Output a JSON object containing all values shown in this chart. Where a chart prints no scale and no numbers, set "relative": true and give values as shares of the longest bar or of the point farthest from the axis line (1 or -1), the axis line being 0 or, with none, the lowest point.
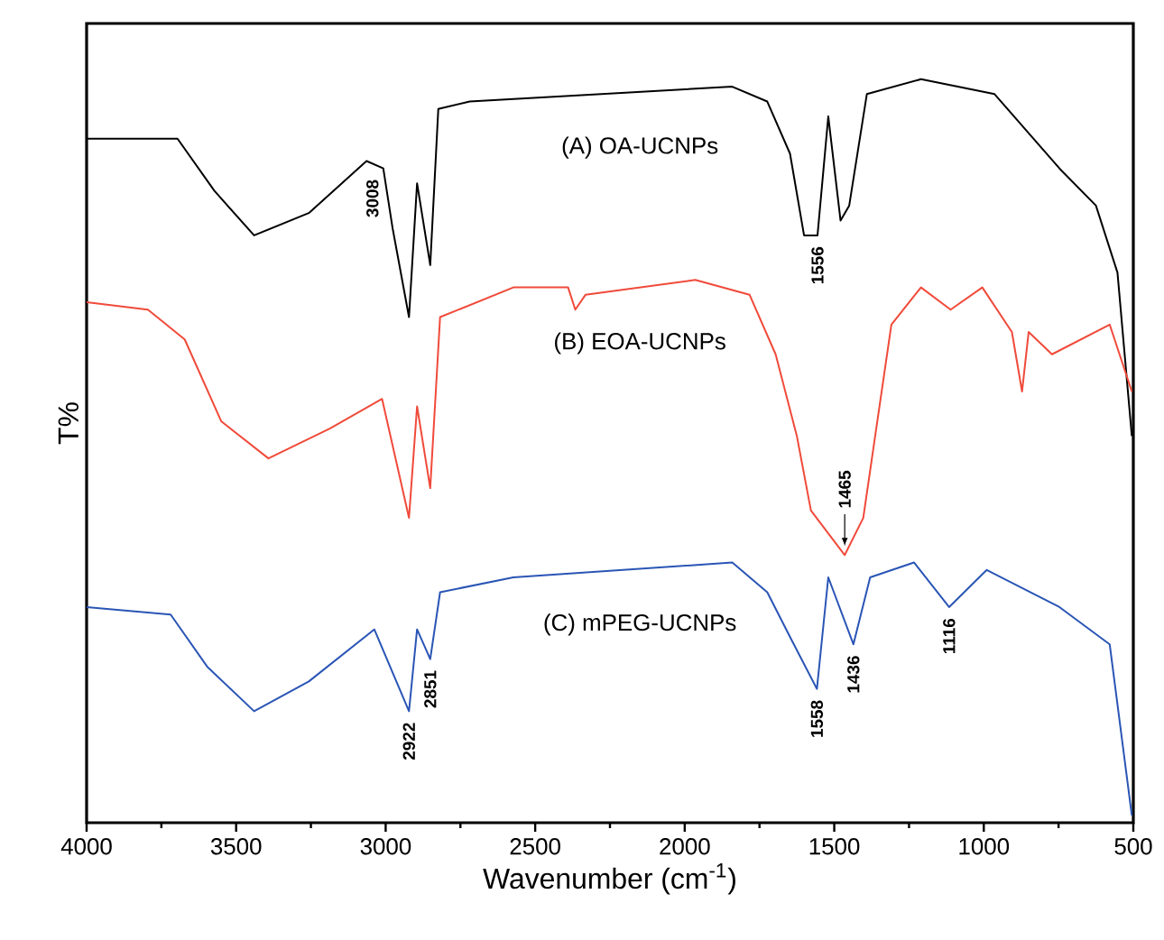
{
  "chart_data": {
    "type": "line",
    "relative": true,
    "xlabel": "Wavenumber (cm$^{-1}$)",
    "ylabel": "T%",
    "xlim": [
      4000,
      500
    ],
    "xticks": [
      4000,
      3500,
      3000,
      2500,
      2000,
      1500,
      1000,
      500
    ],
    "tick_labels": "x",
    "line_style": "solid",
    "marker": "none",
    "series": [
      {
        "name": "(A) OA-UCNPs",
        "color": "#000000",
        "x": [
          4000,
          3696,
          3573,
          3440,
          3257,
          3064,
          3008,
          2977,
          2922,
          2895,
          2851,
          2824,
          2719,
          1841,
          1724,
          1648,
          1601,
          1556,
          1520,
          1479,
          1450,
          1391,
          1210,
          964,
          747,
          625,
          553,
          505
        ],
        "values": [
          0.92,
          0.92,
          0.85,
          0.79,
          0.82,
          0.89,
          0.88,
          0.8,
          0.68,
          0.86,
          0.75,
          0.96,
          0.97,
          0.99,
          0.97,
          0.9,
          0.79,
          0.79,
          0.95,
          0.81,
          0.83,
          0.98,
          1.0,
          0.98,
          0.88,
          0.83,
          0.74,
          0.52
        ]
      },
      {
        "name": "(B) EOA-UCNPs",
        "color": "#f04a3a",
        "x": [
          4000,
          3795,
          3672,
          3550,
          3392,
          3187,
          3012,
          2922,
          2895,
          2851,
          2818,
          2573,
          2390,
          2366,
          2332,
          1965,
          1783,
          1696,
          1625,
          1578,
          1465,
          1403,
          1309,
          1210,
          1111,
          1005,
          906,
          872,
          850,
          772,
          579,
          505
        ],
        "values": [
          0.7,
          0.69,
          0.65,
          0.54,
          0.49,
          0.53,
          0.57,
          0.41,
          0.56,
          0.45,
          0.68,
          0.72,
          0.72,
          0.69,
          0.71,
          0.73,
          0.71,
          0.63,
          0.52,
          0.42,
          0.36,
          0.41,
          0.67,
          0.72,
          0.69,
          0.72,
          0.66,
          0.58,
          0.66,
          0.63,
          0.67,
          0.58
        ]
      },
      {
        "name": "(C) mPEG-UCNPs",
        "color": "#2a55b5",
        "x": [
          4000,
          3719,
          3597,
          3440,
          3257,
          3038,
          2922,
          2895,
          2851,
          2818,
          2573,
          1841,
          1724,
          1648,
          1558,
          1520,
          1436,
          1380,
          1233,
          1116,
          990,
          747,
          579,
          505
        ],
        "values": [
          0.29,
          0.28,
          0.21,
          0.15,
          0.19,
          0.26,
          0.15,
          0.26,
          0.22,
          0.31,
          0.33,
          0.35,
          0.31,
          0.25,
          0.18,
          0.33,
          0.24,
          0.33,
          0.35,
          0.29,
          0.34,
          0.29,
          0.24,
          0.01
        ]
      }
    ],
    "annotations": [
      {
        "text": "3008",
        "x": 3008,
        "y": 0.88
      },
      {
        "text": "1556",
        "x": 1556,
        "y": 0.79
      },
      {
        "text": "1465",
        "x": 1465,
        "y": 0.36
      },
      {
        "text": "2922",
        "x": 2922,
        "y": 0.15
      },
      {
        "text": "2851",
        "x": 2851,
        "y": 0.22
      },
      {
        "text": "1558",
        "x": 1558,
        "y": 0.18
      },
      {
        "text": "1436",
        "x": 1436,
        "y": 0.24
      },
      {
        "text": "1116",
        "x": 1116,
        "y": 0.29
      }
    ]
  }
}
